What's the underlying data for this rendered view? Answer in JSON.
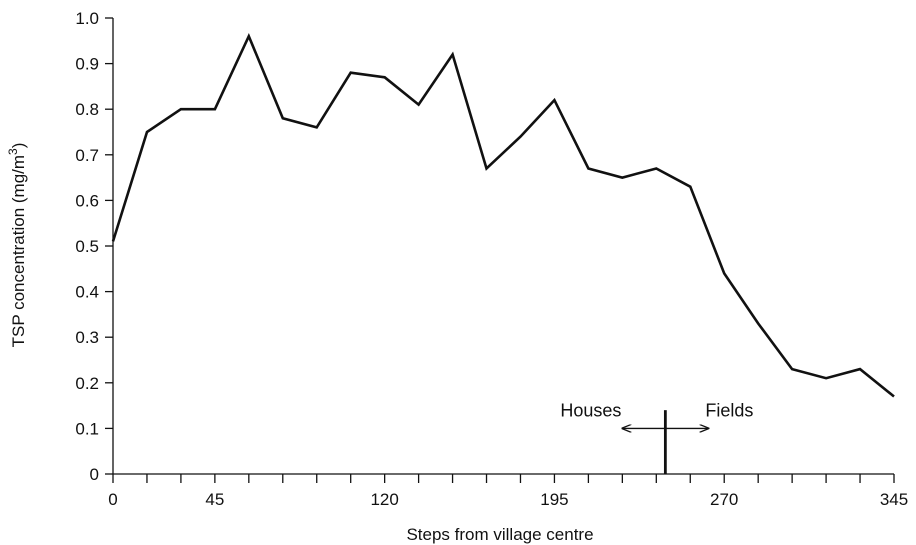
{
  "chart_data": {
    "type": "line",
    "xlabel": "Steps from village centre",
    "ylabel_main": "TSP concentration (mg/m",
    "ylabel_sup": "3",
    "ylabel_close": ")",
    "xlim": [
      0,
      345
    ],
    "ylim": [
      0,
      1.0
    ],
    "x_ticks_major": [
      0,
      45,
      120,
      195,
      270,
      345
    ],
    "x_tick_labels": [
      "0",
      "45",
      "120",
      "195",
      "270",
      "345"
    ],
    "x_ticks_minor": [
      15,
      30,
      60,
      75,
      90,
      105,
      135,
      150,
      165,
      180,
      210,
      225,
      240,
      255,
      285,
      300,
      315,
      330
    ],
    "y_ticks": [
      0,
      0.1,
      0.2,
      0.3,
      0.4,
      0.5,
      0.6,
      0.7,
      0.8,
      0.9,
      1.0
    ],
    "y_tick_labels": [
      "0",
      "0.1",
      "0.2",
      "0.3",
      "0.4",
      "0.5",
      "0.6",
      "0.7",
      "0.8",
      "0.9",
      "1.0"
    ],
    "grid": false,
    "line_color": "#111111",
    "series": [
      {
        "x": [
          0,
          15,
          30,
          45,
          60,
          75,
          90,
          105,
          120,
          135,
          150,
          165,
          180,
          195,
          210,
          225,
          240,
          255,
          270,
          285,
          300,
          315,
          330,
          345
        ],
        "y": [
          0.51,
          0.75,
          0.8,
          0.8,
          0.96,
          0.78,
          0.76,
          0.88,
          0.87,
          0.81,
          0.92,
          0.67,
          0.74,
          0.82,
          0.67,
          0.65,
          0.67,
          0.63,
          0.44,
          0.33,
          0.23,
          0.21,
          0.23,
          0.17
        ]
      }
    ],
    "annotation": {
      "left_label": "Houses",
      "right_label": "Fields",
      "boundary_x": 244,
      "boundary_top_y": 0.14,
      "arrow_y": 0.1,
      "arrow_left_x": 225,
      "arrow_right_x": 263
    }
  }
}
